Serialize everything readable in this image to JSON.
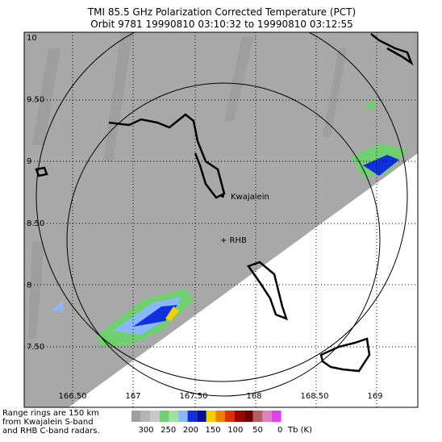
{
  "header": {
    "title_line1": "TMI 85.5 GHz Polarization Corrected Temperature (PCT)",
    "title_line2": "Orbit 9781 19990810 03:10:32 to 19990810 03:12:55"
  },
  "axes": {
    "y_labels": [
      "10",
      "9.50",
      "9",
      "8.50",
      "8",
      "7.50"
    ],
    "x_labels": [
      "166.50",
      "167",
      "167.50",
      "168",
      "168.50",
      "169"
    ]
  },
  "places": {
    "kwajalein": "Kwajalein",
    "rhb": "+ RHB"
  },
  "colorbar": {
    "labels": [
      "300",
      "250",
      "200",
      "150",
      "100",
      "50",
      "0"
    ],
    "unit": "Tb (K)"
  },
  "note": [
    "Range rings are 150 km",
    "from Kwajalein S-band",
    "and RHB C-band radars."
  ]
}
